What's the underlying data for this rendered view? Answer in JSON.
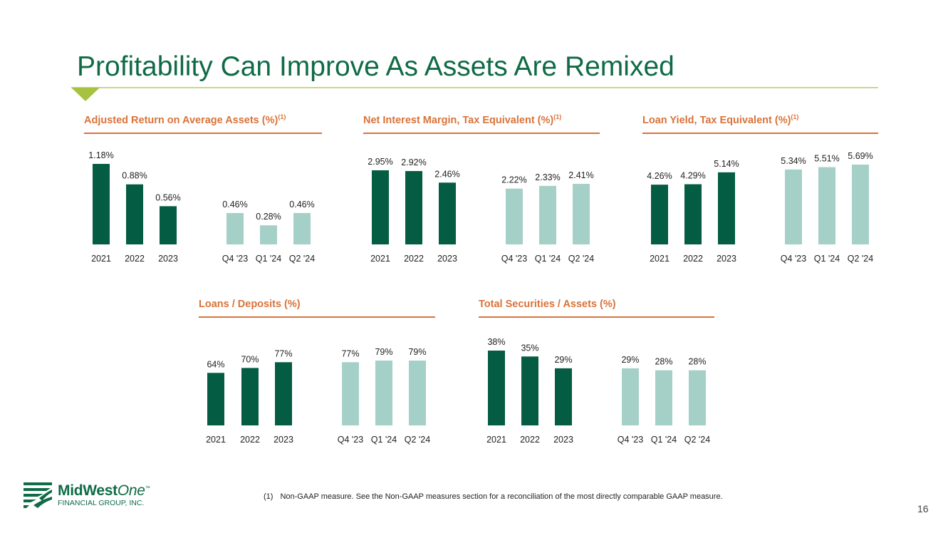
{
  "slide": {
    "title": "Profitability Can Improve As Assets Are Remixed",
    "page_number": "16",
    "footnote_marker": "(1)",
    "footnote_text": "Non-GAAP measure. See the Non-GAAP measures section for a reconciliation of the most directly comparable GAAP measure.",
    "logo": {
      "name_main": "MidWest",
      "name_italic": "One",
      "tm": "™",
      "subtitle": "FINANCIAL GROUP, INC."
    }
  },
  "colors": {
    "title": "#0f6b46",
    "accent_orange": "#d9733a",
    "bar_annual": "#045c43",
    "bar_quarterly": "#a5d0c8",
    "rule_green": "#c8d88a",
    "triangle": "#a6c23e"
  },
  "chart_data": [
    {
      "type": "bar",
      "title": "Adjusted Return on Average Assets (%)",
      "title_superscript": "(1)",
      "categories": [
        "2021",
        "2022",
        "2023",
        "Q4 '23",
        "Q1 '24",
        "Q2 '24"
      ],
      "values": [
        1.18,
        0.88,
        0.56,
        0.46,
        0.28,
        0.46
      ],
      "labels": [
        "1.18%",
        "0.88%",
        "0.56%",
        "0.46%",
        "0.28%",
        "0.46%"
      ],
      "series_kind": [
        "annual",
        "annual",
        "annual",
        "quarterly",
        "quarterly",
        "quarterly"
      ],
      "ylim": [
        0,
        1.18
      ]
    },
    {
      "type": "bar",
      "title": "Net Interest Margin, Tax Equivalent (%)",
      "title_superscript": "(1)",
      "categories": [
        "2021",
        "2022",
        "2023",
        "Q4 '23",
        "Q1 '24",
        "Q2 '24"
      ],
      "values": [
        2.95,
        2.92,
        2.46,
        2.22,
        2.33,
        2.41
      ],
      "labels": [
        "2.95%",
        "2.92%",
        "2.46%",
        "2.22%",
        "2.33%",
        "2.41%"
      ],
      "series_kind": [
        "annual",
        "annual",
        "annual",
        "quarterly",
        "quarterly",
        "quarterly"
      ],
      "ylim": [
        0,
        2.95
      ]
    },
    {
      "type": "bar",
      "title": "Loan Yield, Tax Equivalent (%)",
      "title_superscript": "(1)",
      "categories": [
        "2021",
        "2022",
        "2023",
        "Q4 '23",
        "Q1 '24",
        "Q2 '24"
      ],
      "values": [
        4.26,
        4.29,
        5.14,
        5.34,
        5.51,
        5.69
      ],
      "labels": [
        "4.26%",
        "4.29%",
        "5.14%",
        "5.34%",
        "5.51%",
        "5.69%"
      ],
      "series_kind": [
        "annual",
        "annual",
        "annual",
        "quarterly",
        "quarterly",
        "quarterly"
      ],
      "ylim": [
        0,
        5.69
      ]
    },
    {
      "type": "bar",
      "title": "Loans / Deposits (%)",
      "title_superscript": "",
      "categories": [
        "2021",
        "2022",
        "2023",
        "Q4 '23",
        "Q1 '24",
        "Q2 '24"
      ],
      "values": [
        64,
        70,
        77,
        77,
        79,
        79
      ],
      "labels": [
        "64%",
        "70%",
        "77%",
        "77%",
        "79%",
        "79%"
      ],
      "series_kind": [
        "annual",
        "annual",
        "annual",
        "quarterly",
        "quarterly",
        "quarterly"
      ],
      "ylim": [
        0,
        79
      ]
    },
    {
      "type": "bar",
      "title": "Total Securities / Assets (%)",
      "title_superscript": "",
      "categories": [
        "2021",
        "2022",
        "2023",
        "Q4 '23",
        "Q1 '24",
        "Q2 '24"
      ],
      "values": [
        38,
        35,
        29,
        29,
        28,
        28
      ],
      "labels": [
        "38%",
        "35%",
        "29%",
        "29%",
        "28%",
        "28%"
      ],
      "series_kind": [
        "annual",
        "annual",
        "annual",
        "quarterly",
        "quarterly",
        "quarterly"
      ],
      "ylim": [
        0,
        38
      ]
    }
  ]
}
